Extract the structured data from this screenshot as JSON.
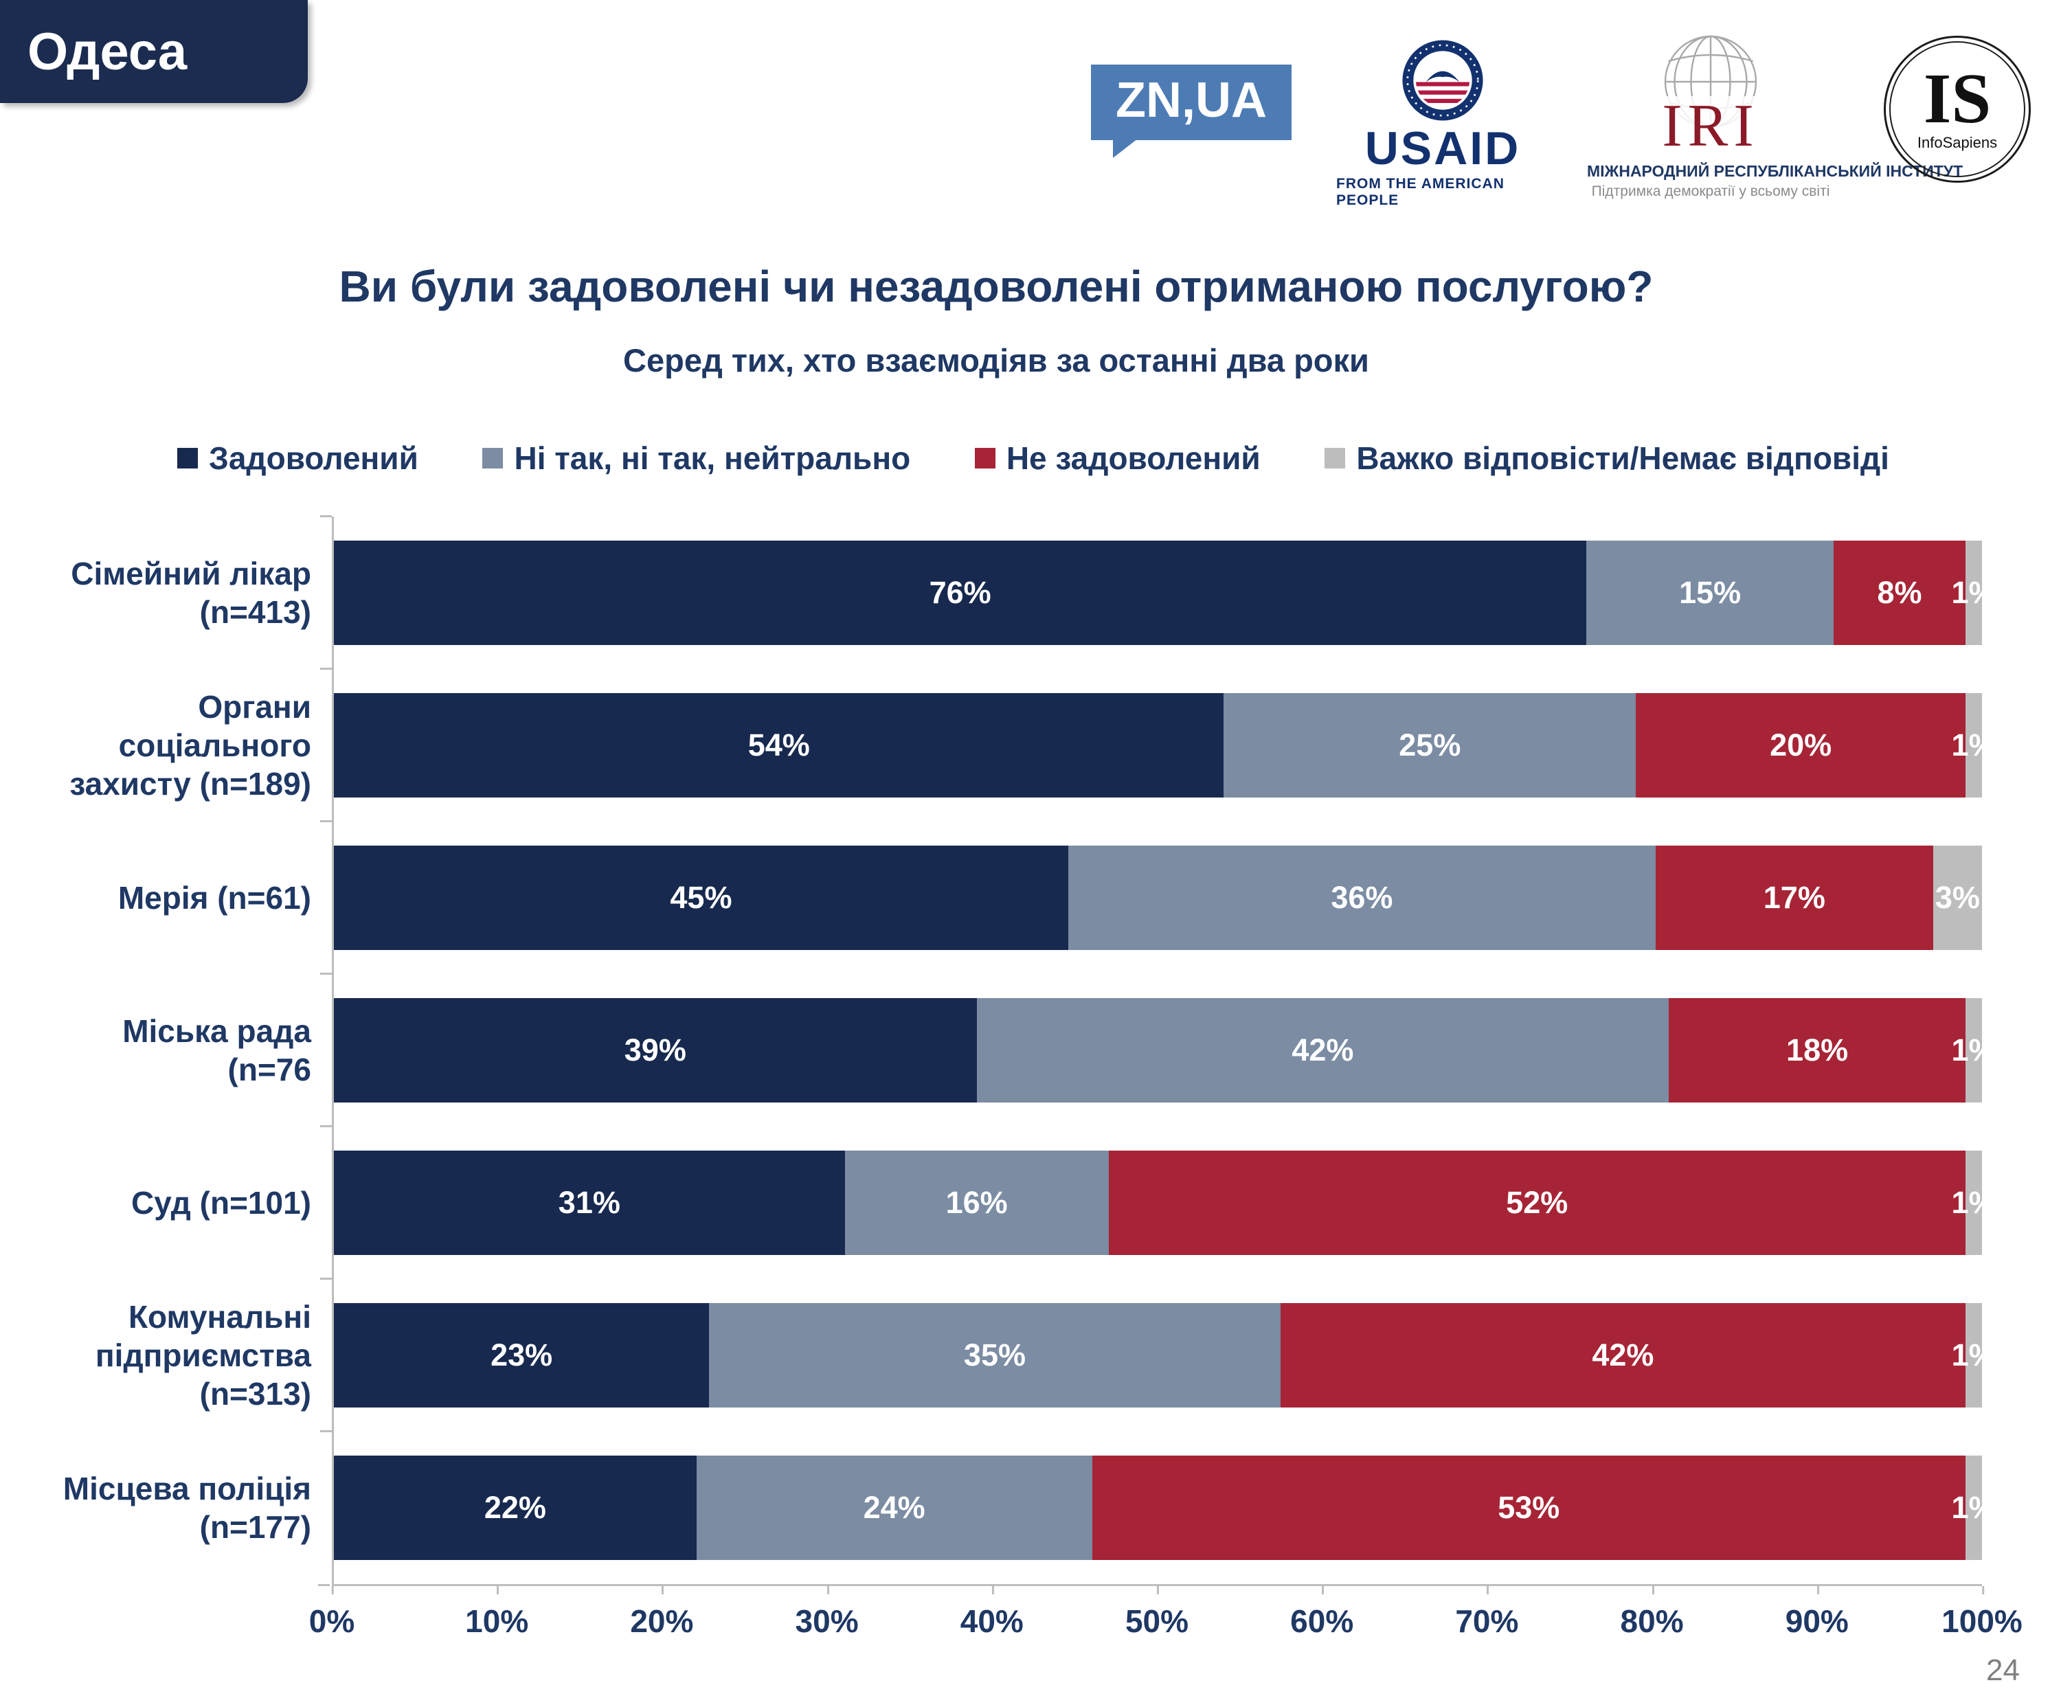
{
  "page": {
    "region_label": "Одеса",
    "page_number": "24"
  },
  "logos": {
    "znua": {
      "text": "ZN,UA"
    },
    "usaid": {
      "text": "USAID",
      "subtitle": "FROM THE AMERICAN PEOPLE"
    },
    "iri": {
      "text": "IRI",
      "line1": "МІЖНАРОДНИЙ РЕСПУБЛІКАНСЬКИЙ ІНСТИТУТ",
      "line2": "Підтримка демократії у всьому світі"
    },
    "infosapiens": {
      "text": "IS",
      "subtitle": "InfoSapiens"
    }
  },
  "chart_data": {
    "type": "bar",
    "orientation": "horizontal",
    "stacked": true,
    "title": "Ви були задоволені чи незадоволені отриманою послугою?",
    "subtitle": "Серед тих, хто взаємодіяв за останні два роки",
    "categories": [
      [
        "Сімейний лікар",
        "(n=413)"
      ],
      [
        "Органи",
        "соціального",
        "захисту (n=189)"
      ],
      [
        "Мерія (n=61)"
      ],
      [
        "Міська рада",
        "(n=76"
      ],
      [
        "Суд (n=101)"
      ],
      [
        "Комунальні",
        "підприємства",
        "(n=313)"
      ],
      [
        "Місцева поліція",
        "(n=177)"
      ]
    ],
    "series": [
      {
        "name": "Задоволений",
        "color": "#17294e",
        "values": [
          76,
          54,
          45,
          39,
          31,
          23,
          22
        ]
      },
      {
        "name": "Ні так, ні так, нейтрально",
        "color": "#7b8ca3",
        "values": [
          15,
          25,
          36,
          42,
          16,
          35,
          24
        ]
      },
      {
        "name": "Не задоволений",
        "color": "#a62436",
        "values": [
          8,
          20,
          17,
          18,
          52,
          42,
          53
        ]
      },
      {
        "name": "Важко відповісти/Немає відповіді",
        "color": "#bdbdbd",
        "values": [
          1,
          1,
          3,
          1,
          1,
          1,
          1
        ]
      }
    ],
    "xlim": [
      0,
      100
    ],
    "x_tick_labels": [
      "0%",
      "10%",
      "20%",
      "30%",
      "40%",
      "50%",
      "60%",
      "70%",
      "80%",
      "90%",
      "100%"
    ],
    "value_suffix": "%",
    "legend_position": "top",
    "grid": false
  }
}
